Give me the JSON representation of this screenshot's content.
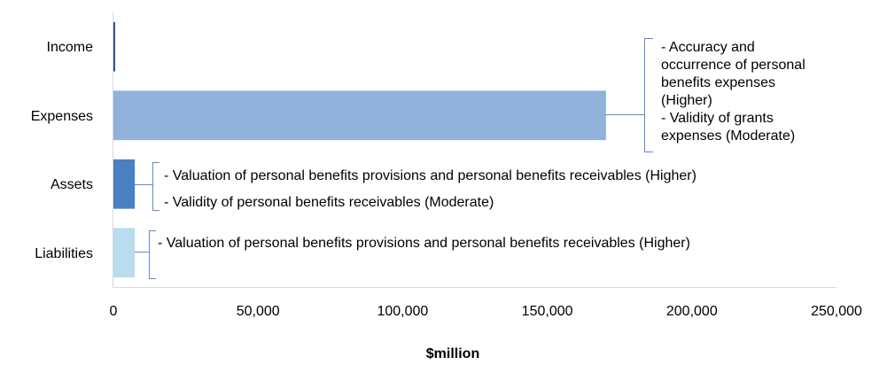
{
  "chart_data": {
    "type": "bar",
    "orientation": "horizontal",
    "title": "",
    "xlabel": "$million",
    "ylabel": "",
    "xlim": [
      0,
      250000
    ],
    "x_ticks": [
      0,
      50000,
      100000,
      150000,
      200000,
      250000
    ],
    "x_tick_labels": [
      "0",
      "50,000",
      "100,000",
      "150,000",
      "200,000",
      "250,000"
    ],
    "categories": [
      "Income",
      "Expenses",
      "Assets",
      "Liabilities"
    ],
    "values": [
      200,
      170300,
      7400,
      7400
    ],
    "colors": [
      "#2f4f9f",
      "#8fb1da",
      "#4a7fc1",
      "#b9dcee"
    ],
    "grid": false,
    "legend": "none",
    "annotations": [
      {
        "category": "Expenses",
        "lines": [
          "- Accuracy and",
          "occurrence of personal",
          "benefits expenses",
          "(Higher)",
          "- Validity of grants",
          "expenses (Moderate)"
        ]
      },
      {
        "category": "Assets",
        "lines": [
          "- Valuation of personal benefits provisions and personal benefits receivables (Higher)",
          "- Validity of personal benefits receivables (Moderate)"
        ]
      },
      {
        "category": "Liabilities",
        "lines": [
          "- Valuation of personal benefits provisions and personal benefits receivables (Higher)"
        ]
      }
    ]
  }
}
